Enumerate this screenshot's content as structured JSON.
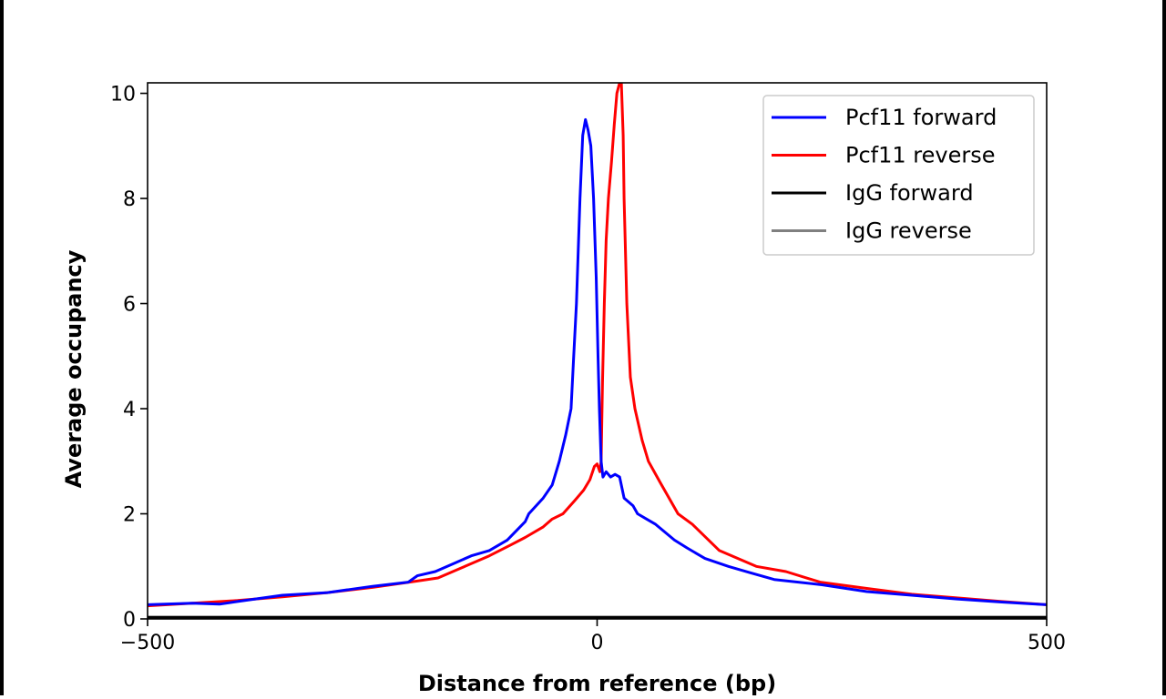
{
  "chart_data": {
    "type": "line",
    "title": "",
    "xlabel": "Distance from reference (bp)",
    "ylabel": "Average occupancy",
    "xlim": [
      -500,
      500
    ],
    "ylim": [
      0,
      10.2
    ],
    "xticks": [
      -500,
      0,
      500
    ],
    "xtick_labels": [
      "−500",
      "0",
      "500"
    ],
    "yticks": [
      0,
      2,
      4,
      6,
      8,
      10
    ],
    "ytick_labels": [
      "0",
      "2",
      "4",
      "6",
      "8",
      "10"
    ],
    "grid": false,
    "legend_position": "top-right",
    "series": [
      {
        "name": "Pcf11 forward",
        "color": "#0000ff",
        "x": [
          -500,
          -450,
          -420,
          -400,
          -350,
          -300,
          -250,
          -210,
          -200,
          -180,
          -160,
          -140,
          -120,
          -100,
          -80,
          -76,
          -60,
          -50,
          -42,
          -35,
          -29,
          -26,
          -23,
          -19,
          -16,
          -13,
          -10,
          -7,
          -4,
          -1,
          1,
          2.5,
          4.5,
          6.5,
          10,
          15,
          20,
          25,
          30,
          40,
          45,
          55,
          65,
          86,
          100,
          120,
          146,
          170,
          197,
          250,
          300,
          350,
          400,
          450,
          500
        ],
        "y": [
          0.27,
          0.3,
          0.28,
          0.33,
          0.45,
          0.5,
          0.62,
          0.7,
          0.82,
          0.9,
          1.05,
          1.2,
          1.3,
          1.5,
          1.85,
          2.0,
          2.3,
          2.55,
          3.0,
          3.5,
          4.0,
          5.0,
          6.0,
          8.0,
          9.2,
          9.5,
          9.3,
          9.0,
          8.0,
          6.5,
          5.0,
          4.0,
          3.0,
          2.7,
          2.8,
          2.7,
          2.75,
          2.7,
          2.3,
          2.15,
          2.0,
          1.9,
          1.8,
          1.5,
          1.35,
          1.15,
          1.0,
          0.88,
          0.75,
          0.65,
          0.52,
          0.45,
          0.38,
          0.32,
          0.27
        ]
      },
      {
        "name": "Pcf11 reverse",
        "color": "#ff0000",
        "x": [
          -500,
          -450,
          -400,
          -350,
          -300,
          -250,
          -200,
          -177,
          -147,
          -120,
          -97,
          -80,
          -60,
          -50,
          -38,
          -25,
          -15,
          -8,
          -3,
          0,
          3,
          4.5,
          6,
          8,
          10,
          12.6,
          16,
          19,
          22,
          25,
          27,
          29,
          30,
          33,
          37,
          42,
          50,
          57,
          70,
          90,
          106,
          136,
          177,
          210,
          248,
          300,
          350,
          400,
          450,
          500
        ],
        "y": [
          0.25,
          0.3,
          0.35,
          0.42,
          0.5,
          0.6,
          0.72,
          0.78,
          1.0,
          1.2,
          1.4,
          1.55,
          1.75,
          1.9,
          2.0,
          2.25,
          2.45,
          2.65,
          2.9,
          2.95,
          2.8,
          3.0,
          4.5,
          6.0,
          7.2,
          8.0,
          8.7,
          9.4,
          10.0,
          10.2,
          10.2,
          9.2,
          8.0,
          6.0,
          4.6,
          4.0,
          3.4,
          3.0,
          2.6,
          2.0,
          1.8,
          1.3,
          1.0,
          0.9,
          0.7,
          0.58,
          0.47,
          0.4,
          0.33,
          0.27
        ]
      },
      {
        "name": "IgG forward",
        "color": "#000000",
        "x": [
          -500,
          -250,
          0,
          250,
          500
        ],
        "y": [
          0.03,
          0.03,
          0.03,
          0.03,
          0.03
        ]
      },
      {
        "name": "IgG reverse",
        "color": "#808080",
        "x": [
          -500,
          -250,
          0,
          250,
          500
        ],
        "y": [
          0.03,
          0.03,
          0.03,
          0.03,
          0.03
        ]
      }
    ]
  }
}
